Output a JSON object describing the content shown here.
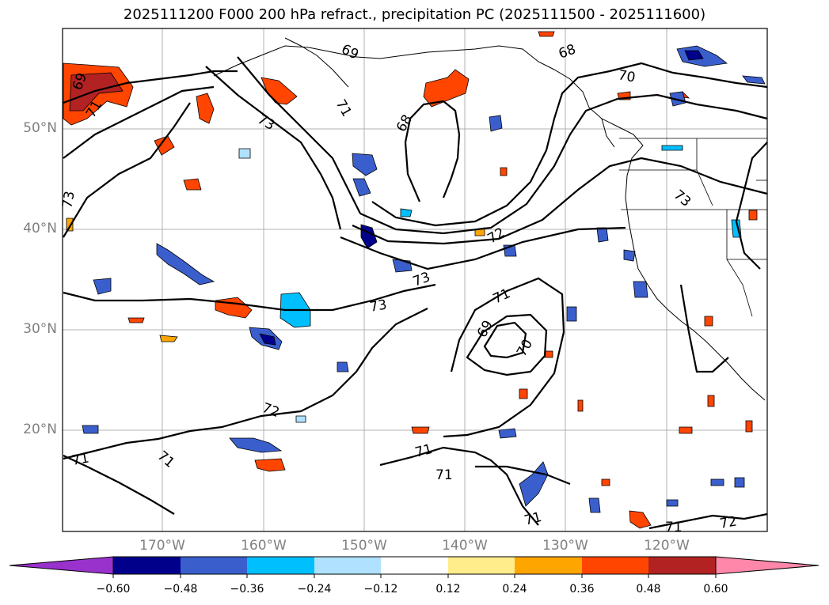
{
  "map": {
    "title": "2025111200 F000 200 hPa refract., precipitation PC (2025111500 - 2025111600)",
    "lat_labels": [
      "50°N",
      "40°N",
      "30°N",
      "20°N"
    ],
    "lon_labels": [
      "170°W",
      "160°W",
      "150°W",
      "140°W",
      "130°W",
      "120°W"
    ],
    "contour_labels": [
      "69",
      "69",
      "68",
      "70",
      "71",
      "71",
      "73",
      "73",
      "68",
      "73",
      "72",
      "73",
      "73",
      "71",
      "69",
      "70",
      "72",
      "71",
      "71",
      "71",
      "71",
      "71",
      "71",
      "72"
    ],
    "colorbar": {
      "ticks": [
        "−0.60",
        "−0.48",
        "−0.36",
        "−0.24",
        "−0.12",
        "0.12",
        "0.24",
        "0.36",
        "0.48",
        "0.60"
      ],
      "colors": [
        "#9932CC",
        "#00008B",
        "#3A5FCD",
        "#00BFFF",
        "#B0E2FF",
        "#FFFFFF",
        "#FFEC8B",
        "#FFA500",
        "#FF4500",
        "#B22222",
        "#FF88AA"
      ]
    }
  }
}
